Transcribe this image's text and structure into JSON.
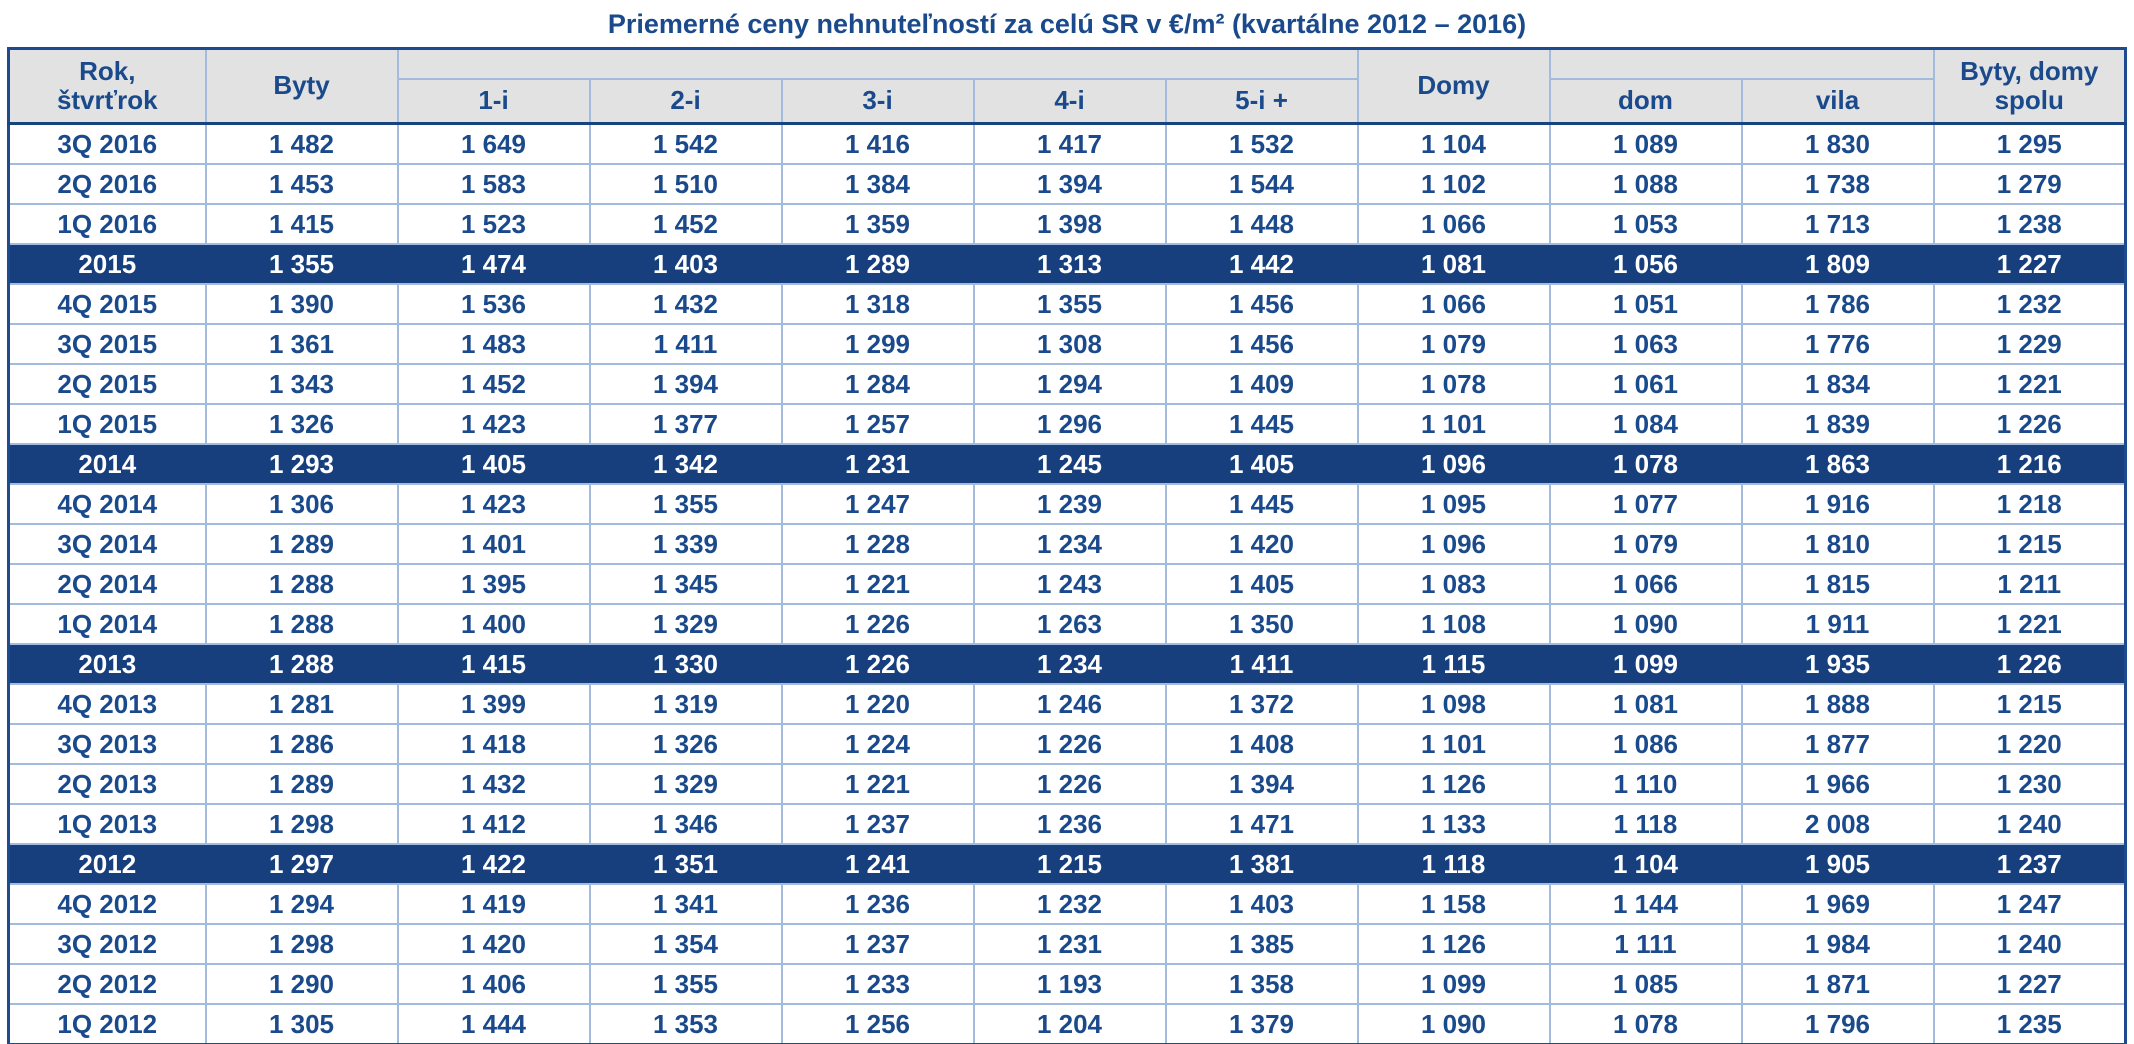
{
  "title": "Priemerné ceny nehnuteľností za celú SR v €/m² (kvartálne 2012 – 2016)",
  "table": {
    "header_year": "Rok,\nštvrťrok",
    "header_byty": "Byty",
    "header_domy": "Domy",
    "header_spolu": "Byty, domy\nspolu",
    "byty_subheaders": [
      "1-i",
      "2-i",
      "3-i",
      "4-i",
      "5-i +"
    ],
    "domy_subheaders": [
      "dom",
      "vila"
    ]
  },
  "colors": {
    "text_blue": "#1A4A8C",
    "highlight_row_bg": "#173F7D",
    "highlight_row_text": "#FFFFFF",
    "header_bg": "#E2E2E2",
    "grid_line": "#A3BBDC",
    "outer_border": "#1E4B8F"
  },
  "chart_data": {
    "type": "table",
    "title": "Priemerné ceny nehnuteľností za celú SR v €/m² (kvartálne 2012 – 2016)",
    "columns": [
      "Rok, štvrťrok",
      "Byty",
      "1-i",
      "2-i",
      "3-i",
      "4-i",
      "5-i +",
      "Domy",
      "dom",
      "vila",
      "Byty, domy spolu"
    ],
    "rows": [
      {
        "label": "3Q 2016",
        "highlight": false,
        "values": [
          1482,
          1649,
          1542,
          1416,
          1417,
          1532,
          1104,
          1089,
          1830,
          1295
        ]
      },
      {
        "label": "2Q 2016",
        "highlight": false,
        "values": [
          1453,
          1583,
          1510,
          1384,
          1394,
          1544,
          1102,
          1088,
          1738,
          1279
        ]
      },
      {
        "label": "1Q 2016",
        "highlight": false,
        "values": [
          1415,
          1523,
          1452,
          1359,
          1398,
          1448,
          1066,
          1053,
          1713,
          1238
        ]
      },
      {
        "label": "2015",
        "highlight": true,
        "values": [
          1355,
          1474,
          1403,
          1289,
          1313,
          1442,
          1081,
          1056,
          1809,
          1227
        ]
      },
      {
        "label": "4Q 2015",
        "highlight": false,
        "values": [
          1390,
          1536,
          1432,
          1318,
          1355,
          1456,
          1066,
          1051,
          1786,
          1232
        ]
      },
      {
        "label": "3Q 2015",
        "highlight": false,
        "values": [
          1361,
          1483,
          1411,
          1299,
          1308,
          1456,
          1079,
          1063,
          1776,
          1229
        ]
      },
      {
        "label": "2Q 2015",
        "highlight": false,
        "values": [
          1343,
          1452,
          1394,
          1284,
          1294,
          1409,
          1078,
          1061,
          1834,
          1221
        ]
      },
      {
        "label": "1Q 2015",
        "highlight": false,
        "values": [
          1326,
          1423,
          1377,
          1257,
          1296,
          1445,
          1101,
          1084,
          1839,
          1226
        ]
      },
      {
        "label": "2014",
        "highlight": true,
        "values": [
          1293,
          1405,
          1342,
          1231,
          1245,
          1405,
          1096,
          1078,
          1863,
          1216
        ]
      },
      {
        "label": "4Q 2014",
        "highlight": false,
        "values": [
          1306,
          1423,
          1355,
          1247,
          1239,
          1445,
          1095,
          1077,
          1916,
          1218
        ]
      },
      {
        "label": "3Q 2014",
        "highlight": false,
        "values": [
          1289,
          1401,
          1339,
          1228,
          1234,
          1420,
          1096,
          1079,
          1810,
          1215
        ]
      },
      {
        "label": "2Q 2014",
        "highlight": false,
        "values": [
          1288,
          1395,
          1345,
          1221,
          1243,
          1405,
          1083,
          1066,
          1815,
          1211
        ]
      },
      {
        "label": "1Q 2014",
        "highlight": false,
        "values": [
          1288,
          1400,
          1329,
          1226,
          1263,
          1350,
          1108,
          1090,
          1911,
          1221
        ]
      },
      {
        "label": "2013",
        "highlight": true,
        "values": [
          1288,
          1415,
          1330,
          1226,
          1234,
          1411,
          1115,
          1099,
          1935,
          1226
        ]
      },
      {
        "label": "4Q 2013",
        "highlight": false,
        "values": [
          1281,
          1399,
          1319,
          1220,
          1246,
          1372,
          1098,
          1081,
          1888,
          1215
        ]
      },
      {
        "label": "3Q 2013",
        "highlight": false,
        "values": [
          1286,
          1418,
          1326,
          1224,
          1226,
          1408,
          1101,
          1086,
          1877,
          1220
        ]
      },
      {
        "label": "2Q 2013",
        "highlight": false,
        "values": [
          1289,
          1432,
          1329,
          1221,
          1226,
          1394,
          1126,
          1110,
          1966,
          1230
        ]
      },
      {
        "label": "1Q 2013",
        "highlight": false,
        "values": [
          1298,
          1412,
          1346,
          1237,
          1236,
          1471,
          1133,
          1118,
          2008,
          1240
        ]
      },
      {
        "label": "2012",
        "highlight": true,
        "values": [
          1297,
          1422,
          1351,
          1241,
          1215,
          1381,
          1118,
          1104,
          1905,
          1237
        ]
      },
      {
        "label": "4Q 2012",
        "highlight": false,
        "values": [
          1294,
          1419,
          1341,
          1236,
          1232,
          1403,
          1158,
          1144,
          1969,
          1247
        ]
      },
      {
        "label": "3Q 2012",
        "highlight": false,
        "values": [
          1298,
          1420,
          1354,
          1237,
          1231,
          1385,
          1126,
          1111,
          1984,
          1240
        ]
      },
      {
        "label": "2Q 2012",
        "highlight": false,
        "values": [
          1290,
          1406,
          1355,
          1233,
          1193,
          1358,
          1099,
          1085,
          1871,
          1227
        ]
      },
      {
        "label": "1Q 2012",
        "highlight": false,
        "values": [
          1305,
          1444,
          1353,
          1256,
          1204,
          1379,
          1090,
          1078,
          1796,
          1235
        ]
      }
    ]
  }
}
